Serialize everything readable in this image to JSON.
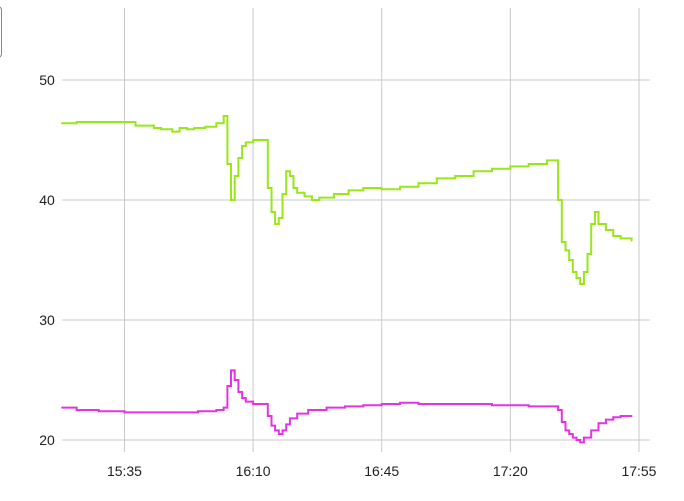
{
  "chart_data": {
    "type": "line",
    "title": "",
    "xlabel": "",
    "ylabel": "",
    "x_ticks": [
      "15:35",
      "16:10",
      "16:45",
      "17:20",
      "17:55"
    ],
    "y_ticks": [
      "20",
      "30",
      "40",
      "50"
    ],
    "xlim": [
      "15:18",
      "17:58"
    ],
    "ylim": [
      19,
      56
    ],
    "grid": true,
    "series": [
      {
        "color": "#99e61a",
        "x": [
          "15:18",
          "15:22",
          "15:28",
          "15:33",
          "15:38",
          "15:43",
          "15:45",
          "15:48",
          "15:50",
          "15:52",
          "15:54",
          "15:57",
          "16:00",
          "16:02",
          "16:03",
          "16:04",
          "16:05",
          "16:06",
          "16:07",
          "16:08",
          "16:10",
          "16:12",
          "16:14",
          "16:15",
          "16:16",
          "16:17",
          "16:18",
          "16:19",
          "16:20",
          "16:21",
          "16:22",
          "16:24",
          "16:26",
          "16:28",
          "16:32",
          "16:36",
          "16:40",
          "16:45",
          "16:50",
          "16:55",
          "17:00",
          "17:05",
          "17:10",
          "17:15",
          "17:20",
          "17:25",
          "17:30",
          "17:33",
          "17:34",
          "17:35",
          "17:36",
          "17:37",
          "17:38",
          "17:39",
          "17:40",
          "17:41",
          "17:42",
          "17:43",
          "17:44",
          "17:46",
          "17:48",
          "17:50",
          "17:53"
        ],
        "y": [
          46.4,
          46.5,
          46.5,
          46.5,
          46.2,
          46.0,
          45.9,
          45.7,
          46.0,
          45.9,
          46.0,
          46.1,
          46.4,
          47.0,
          43.0,
          40.0,
          42.0,
          43.5,
          44.5,
          44.8,
          45.0,
          45.0,
          41.0,
          39.0,
          38.0,
          38.5,
          40.5,
          42.4,
          42.0,
          41.0,
          40.6,
          40.3,
          40.0,
          40.2,
          40.5,
          40.8,
          41.0,
          40.9,
          41.1,
          41.4,
          41.8,
          42.0,
          42.4,
          42.6,
          42.8,
          43.0,
          43.3,
          40.0,
          36.5,
          35.8,
          35.0,
          34.0,
          33.5,
          33.0,
          34.0,
          35.5,
          38.0,
          39.0,
          38.0,
          37.5,
          37.0,
          36.8,
          36.6
        ]
      },
      {
        "color": "#e433e4",
        "x": [
          "15:18",
          "15:22",
          "15:28",
          "15:35",
          "15:45",
          "15:55",
          "16:00",
          "16:02",
          "16:03",
          "16:04",
          "16:05",
          "16:06",
          "16:07",
          "16:08",
          "16:10",
          "16:12",
          "16:14",
          "16:15",
          "16:16",
          "16:17",
          "16:18",
          "16:19",
          "16:20",
          "16:22",
          "16:25",
          "16:30",
          "16:35",
          "16:40",
          "16:45",
          "16:50",
          "16:55",
          "17:00",
          "17:05",
          "17:10",
          "17:15",
          "17:20",
          "17:25",
          "17:30",
          "17:33",
          "17:34",
          "17:35",
          "17:36",
          "17:37",
          "17:38",
          "17:39",
          "17:40",
          "17:42",
          "17:44",
          "17:46",
          "17:48",
          "17:50",
          "17:53"
        ],
        "y": [
          22.7,
          22.5,
          22.4,
          22.3,
          22.3,
          22.4,
          22.5,
          22.7,
          24.5,
          25.8,
          25.0,
          24.0,
          23.5,
          23.2,
          23.0,
          23.0,
          22.0,
          21.2,
          20.8,
          20.5,
          20.8,
          21.3,
          21.8,
          22.2,
          22.5,
          22.7,
          22.8,
          22.9,
          23.0,
          23.1,
          23.0,
          23.0,
          23.0,
          23.0,
          22.9,
          22.9,
          22.8,
          22.8,
          22.5,
          21.5,
          20.8,
          20.5,
          20.2,
          20.0,
          19.8,
          20.2,
          20.8,
          21.4,
          21.7,
          21.9,
          22.0,
          22.0
        ]
      }
    ]
  }
}
